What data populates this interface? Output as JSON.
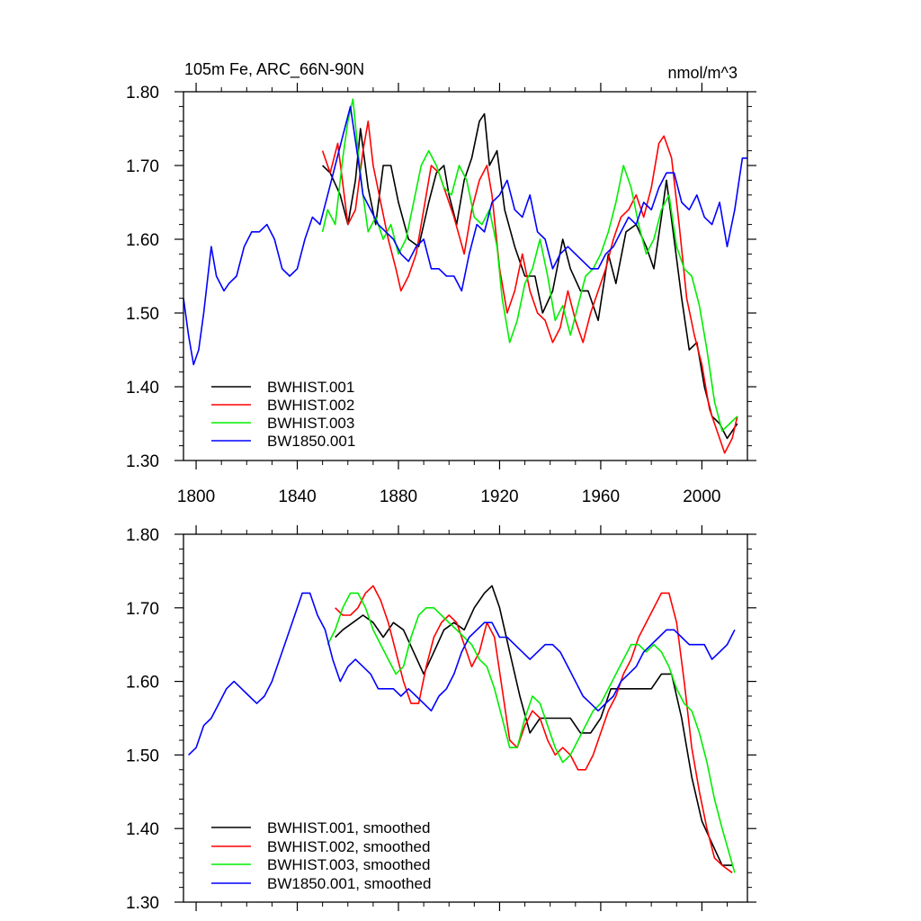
{
  "chart_data": [
    {
      "type": "line",
      "title": "105m Fe, ARC_66N-90N",
      "units": "nmol/m^3",
      "xlim": [
        1795,
        2018
      ],
      "ylim": [
        1.3,
        1.8
      ],
      "x_ticks": [
        1800,
        1840,
        1880,
        1920,
        1960,
        2000
      ],
      "x_tick_labels": [
        "1800",
        "1840",
        "1880",
        "1920",
        "1960",
        "2000"
      ],
      "y_ticks": [
        1.3,
        1.4,
        1.5,
        1.6,
        1.7,
        1.8
      ],
      "y_tick_labels": [
        "1.30",
        "1.40",
        "1.50",
        "1.60",
        "1.70",
        "1.80"
      ],
      "legend_position": "bottom-left",
      "series": [
        {
          "name": "BWHIST.001",
          "color": "#000000",
          "x": [
            1850,
            1853,
            1857,
            1860,
            1863,
            1865,
            1868,
            1871,
            1874,
            1877,
            1880,
            1884,
            1888,
            1892,
            1895,
            1898,
            1900,
            1903,
            1906,
            1909,
            1912,
            1914,
            1916,
            1919,
            1922,
            1926,
            1930,
            1934,
            1937,
            1941,
            1945,
            1948,
            1952,
            1955,
            1959,
            1963,
            1966,
            1970,
            1974,
            1978,
            1981,
            1984,
            1986,
            1989,
            1992,
            1995,
            1998,
            2001,
            2004,
            2007,
            2010,
            2014
          ],
          "y": [
            1.7,
            1.69,
            1.66,
            1.62,
            1.68,
            1.75,
            1.67,
            1.62,
            1.7,
            1.7,
            1.65,
            1.6,
            1.59,
            1.65,
            1.69,
            1.7,
            1.66,
            1.62,
            1.68,
            1.71,
            1.76,
            1.77,
            1.7,
            1.72,
            1.64,
            1.59,
            1.55,
            1.55,
            1.5,
            1.53,
            1.6,
            1.56,
            1.53,
            1.53,
            1.49,
            1.58,
            1.54,
            1.61,
            1.62,
            1.59,
            1.56,
            1.63,
            1.68,
            1.6,
            1.52,
            1.45,
            1.46,
            1.4,
            1.36,
            1.35,
            1.33,
            1.35
          ]
        },
        {
          "name": "BWHIST.002",
          "color": "#ff0000",
          "x": [
            1850,
            1853,
            1856,
            1860,
            1863,
            1866,
            1868,
            1870,
            1873,
            1876,
            1879,
            1881,
            1884,
            1887,
            1890,
            1893,
            1896,
            1899,
            1902,
            1906,
            1909,
            1912,
            1915,
            1917,
            1920,
            1923,
            1926,
            1929,
            1932,
            1935,
            1938,
            1941,
            1944,
            1947,
            1950,
            1953,
            1956,
            1959,
            1962,
            1965,
            1968,
            1971,
            1974,
            1977,
            1980,
            1983,
            1985,
            1988,
            1991,
            1994,
            1997,
            2000,
            2003,
            2006,
            2009,
            2012,
            2014
          ],
          "y": [
            1.72,
            1.69,
            1.73,
            1.62,
            1.64,
            1.72,
            1.76,
            1.7,
            1.65,
            1.6,
            1.56,
            1.53,
            1.55,
            1.58,
            1.64,
            1.7,
            1.69,
            1.66,
            1.63,
            1.58,
            1.64,
            1.68,
            1.7,
            1.66,
            1.56,
            1.5,
            1.53,
            1.58,
            1.53,
            1.5,
            1.49,
            1.46,
            1.48,
            1.53,
            1.49,
            1.46,
            1.5,
            1.53,
            1.56,
            1.6,
            1.63,
            1.64,
            1.66,
            1.63,
            1.67,
            1.73,
            1.74,
            1.71,
            1.62,
            1.52,
            1.47,
            1.43,
            1.37,
            1.34,
            1.31,
            1.33,
            1.36
          ]
        },
        {
          "name": "BWHIST.003",
          "color": "#00ee00",
          "x": [
            1850,
            1852,
            1855,
            1858,
            1860,
            1862,
            1864,
            1866,
            1868,
            1871,
            1874,
            1877,
            1880,
            1883,
            1886,
            1889,
            1892,
            1895,
            1898,
            1901,
            1904,
            1907,
            1910,
            1913,
            1916,
            1919,
            1921,
            1924,
            1927,
            1930,
            1933,
            1936,
            1939,
            1942,
            1945,
            1948,
            1951,
            1954,
            1957,
            1960,
            1963,
            1966,
            1969,
            1972,
            1975,
            1978,
            1981,
            1984,
            1987,
            1990,
            1993,
            1996,
            1999,
            2002,
            2005,
            2008,
            2011,
            2014
          ],
          "y": [
            1.61,
            1.64,
            1.62,
            1.71,
            1.76,
            1.79,
            1.72,
            1.66,
            1.61,
            1.63,
            1.6,
            1.62,
            1.58,
            1.6,
            1.65,
            1.7,
            1.72,
            1.7,
            1.67,
            1.66,
            1.7,
            1.68,
            1.63,
            1.62,
            1.64,
            1.59,
            1.52,
            1.46,
            1.49,
            1.54,
            1.56,
            1.6,
            1.55,
            1.49,
            1.51,
            1.47,
            1.51,
            1.55,
            1.56,
            1.58,
            1.61,
            1.65,
            1.7,
            1.67,
            1.62,
            1.58,
            1.6,
            1.64,
            1.66,
            1.59,
            1.56,
            1.55,
            1.51,
            1.45,
            1.38,
            1.34,
            1.35,
            1.36
          ]
        },
        {
          "name": "BW1850.001",
          "color": "#0000ff",
          "x": [
            1795,
            1797,
            1799,
            1801,
            1803,
            1806,
            1808,
            1811,
            1813,
            1816,
            1819,
            1822,
            1825,
            1828,
            1831,
            1834,
            1837,
            1840,
            1843,
            1846,
            1849,
            1852,
            1855,
            1858,
            1861,
            1864,
            1866,
            1869,
            1872,
            1875,
            1878,
            1881,
            1884,
            1887,
            1890,
            1893,
            1896,
            1899,
            1902,
            1905,
            1908,
            1911,
            1914,
            1917,
            1920,
            1923,
            1926,
            1929,
            1932,
            1935,
            1938,
            1941,
            1944,
            1947,
            1950,
            1953,
            1956,
            1959,
            1962,
            1965,
            1968,
            1971,
            1974,
            1977,
            1980,
            1983,
            1986,
            1989,
            1992,
            1995,
            1998,
            2001,
            2004,
            2007,
            2010,
            2013,
            2016,
            2018
          ],
          "y": [
            1.52,
            1.47,
            1.43,
            1.45,
            1.5,
            1.59,
            1.55,
            1.53,
            1.54,
            1.55,
            1.59,
            1.61,
            1.61,
            1.62,
            1.6,
            1.56,
            1.55,
            1.56,
            1.6,
            1.63,
            1.62,
            1.66,
            1.7,
            1.74,
            1.78,
            1.71,
            1.66,
            1.64,
            1.62,
            1.61,
            1.6,
            1.58,
            1.57,
            1.59,
            1.6,
            1.56,
            1.56,
            1.55,
            1.55,
            1.53,
            1.58,
            1.62,
            1.61,
            1.65,
            1.66,
            1.68,
            1.64,
            1.63,
            1.66,
            1.61,
            1.6,
            1.56,
            1.58,
            1.59,
            1.58,
            1.57,
            1.56,
            1.56,
            1.58,
            1.59,
            1.61,
            1.63,
            1.62,
            1.65,
            1.64,
            1.67,
            1.69,
            1.69,
            1.65,
            1.64,
            1.66,
            1.63,
            1.62,
            1.65,
            1.59,
            1.64,
            1.71,
            1.71
          ]
        }
      ]
    },
    {
      "type": "line",
      "xlim": [
        1795,
        2018
      ],
      "ylim": [
        1.3,
        1.8
      ],
      "x_ticks": [
        1800,
        1840,
        1880,
        1920,
        1960,
        2000
      ],
      "y_ticks": [
        1.3,
        1.4,
        1.5,
        1.6,
        1.7,
        1.8
      ],
      "y_tick_labels": [
        "1.30",
        "1.40",
        "1.50",
        "1.60",
        "1.70",
        "1.80"
      ],
      "legend_position": "bottom-left",
      "series": [
        {
          "name": "BWHIST.001, smoothed",
          "color": "#000000",
          "x": [
            1855,
            1858,
            1862,
            1866,
            1870,
            1874,
            1878,
            1882,
            1886,
            1890,
            1894,
            1898,
            1902,
            1906,
            1910,
            1914,
            1917,
            1920,
            1924,
            1928,
            1932,
            1936,
            1940,
            1944,
            1948,
            1952,
            1956,
            1960,
            1964,
            1968,
            1972,
            1976,
            1980,
            1984,
            1988,
            1992,
            1996,
            2000,
            2004,
            2008,
            2012
          ],
          "y": [
            1.66,
            1.67,
            1.68,
            1.69,
            1.68,
            1.66,
            1.68,
            1.67,
            1.64,
            1.61,
            1.64,
            1.67,
            1.68,
            1.67,
            1.7,
            1.72,
            1.73,
            1.7,
            1.64,
            1.58,
            1.53,
            1.55,
            1.55,
            1.55,
            1.55,
            1.53,
            1.53,
            1.55,
            1.59,
            1.59,
            1.59,
            1.59,
            1.59,
            1.61,
            1.61,
            1.55,
            1.47,
            1.41,
            1.38,
            1.35,
            1.35
          ]
        },
        {
          "name": "BWHIST.002, smoothed",
          "color": "#ff0000",
          "x": [
            1855,
            1858,
            1861,
            1864,
            1867,
            1870,
            1873,
            1876,
            1879,
            1882,
            1885,
            1888,
            1891,
            1894,
            1897,
            1900,
            1903,
            1906,
            1909,
            1912,
            1915,
            1918,
            1921,
            1924,
            1927,
            1930,
            1933,
            1936,
            1939,
            1942,
            1945,
            1948,
            1951,
            1954,
            1957,
            1960,
            1963,
            1966,
            1969,
            1972,
            1975,
            1978,
            1981,
            1984,
            1987,
            1990,
            1993,
            1996,
            1999,
            2002,
            2005,
            2008,
            2012
          ],
          "y": [
            1.7,
            1.69,
            1.69,
            1.7,
            1.72,
            1.73,
            1.71,
            1.68,
            1.64,
            1.6,
            1.57,
            1.57,
            1.62,
            1.66,
            1.68,
            1.69,
            1.68,
            1.65,
            1.62,
            1.64,
            1.68,
            1.66,
            1.59,
            1.52,
            1.51,
            1.54,
            1.56,
            1.55,
            1.52,
            1.5,
            1.51,
            1.5,
            1.48,
            1.48,
            1.5,
            1.53,
            1.56,
            1.58,
            1.61,
            1.63,
            1.66,
            1.68,
            1.7,
            1.72,
            1.72,
            1.68,
            1.6,
            1.51,
            1.45,
            1.4,
            1.36,
            1.35,
            1.34
          ]
        },
        {
          "name": "BWHIST.003, smoothed",
          "color": "#00ee00",
          "x": [
            1852,
            1855,
            1858,
            1861,
            1864,
            1867,
            1870,
            1873,
            1876,
            1879,
            1882,
            1885,
            1888,
            1891,
            1894,
            1897,
            1900,
            1903,
            1906,
            1909,
            1912,
            1915,
            1918,
            1921,
            1924,
            1927,
            1930,
            1933,
            1936,
            1939,
            1942,
            1945,
            1948,
            1951,
            1954,
            1957,
            1960,
            1963,
            1966,
            1969,
            1972,
            1975,
            1978,
            1981,
            1984,
            1987,
            1990,
            1993,
            1996,
            1999,
            2002,
            2005,
            2008,
            2013
          ],
          "y": [
            1.65,
            1.67,
            1.7,
            1.72,
            1.72,
            1.7,
            1.67,
            1.65,
            1.63,
            1.61,
            1.62,
            1.66,
            1.69,
            1.7,
            1.7,
            1.69,
            1.68,
            1.67,
            1.66,
            1.65,
            1.63,
            1.62,
            1.59,
            1.55,
            1.51,
            1.51,
            1.55,
            1.58,
            1.57,
            1.54,
            1.51,
            1.49,
            1.5,
            1.52,
            1.54,
            1.56,
            1.57,
            1.59,
            1.61,
            1.63,
            1.65,
            1.65,
            1.64,
            1.65,
            1.64,
            1.62,
            1.59,
            1.57,
            1.56,
            1.53,
            1.49,
            1.44,
            1.4,
            1.34
          ]
        },
        {
          "name": "BW1850.001, smoothed",
          "color": "#0000ff",
          "x": [
            1797,
            1800,
            1803,
            1806,
            1809,
            1812,
            1815,
            1818,
            1821,
            1824,
            1827,
            1830,
            1833,
            1836,
            1839,
            1842,
            1845,
            1848,
            1851,
            1854,
            1857,
            1860,
            1863,
            1866,
            1869,
            1872,
            1875,
            1878,
            1881,
            1884,
            1887,
            1890,
            1893,
            1896,
            1899,
            1902,
            1905,
            1908,
            1911,
            1914,
            1917,
            1920,
            1923,
            1926,
            1929,
            1932,
            1935,
            1938,
            1941,
            1944,
            1947,
            1950,
            1953,
            1956,
            1959,
            1962,
            1965,
            1968,
            1971,
            1974,
            1977,
            1980,
            1983,
            1986,
            1989,
            1992,
            1995,
            1998,
            2001,
            2004,
            2007,
            2010,
            2013
          ],
          "y": [
            1.5,
            1.51,
            1.54,
            1.55,
            1.57,
            1.59,
            1.6,
            1.59,
            1.58,
            1.57,
            1.58,
            1.6,
            1.63,
            1.66,
            1.69,
            1.72,
            1.72,
            1.69,
            1.67,
            1.63,
            1.6,
            1.62,
            1.63,
            1.62,
            1.61,
            1.59,
            1.59,
            1.59,
            1.58,
            1.59,
            1.58,
            1.57,
            1.56,
            1.58,
            1.59,
            1.61,
            1.64,
            1.66,
            1.67,
            1.68,
            1.68,
            1.66,
            1.66,
            1.65,
            1.64,
            1.63,
            1.64,
            1.65,
            1.65,
            1.64,
            1.62,
            1.6,
            1.58,
            1.57,
            1.56,
            1.57,
            1.58,
            1.6,
            1.61,
            1.62,
            1.64,
            1.65,
            1.66,
            1.67,
            1.67,
            1.66,
            1.65,
            1.65,
            1.65,
            1.63,
            1.64,
            1.65,
            1.67
          ]
        }
      ]
    }
  ]
}
